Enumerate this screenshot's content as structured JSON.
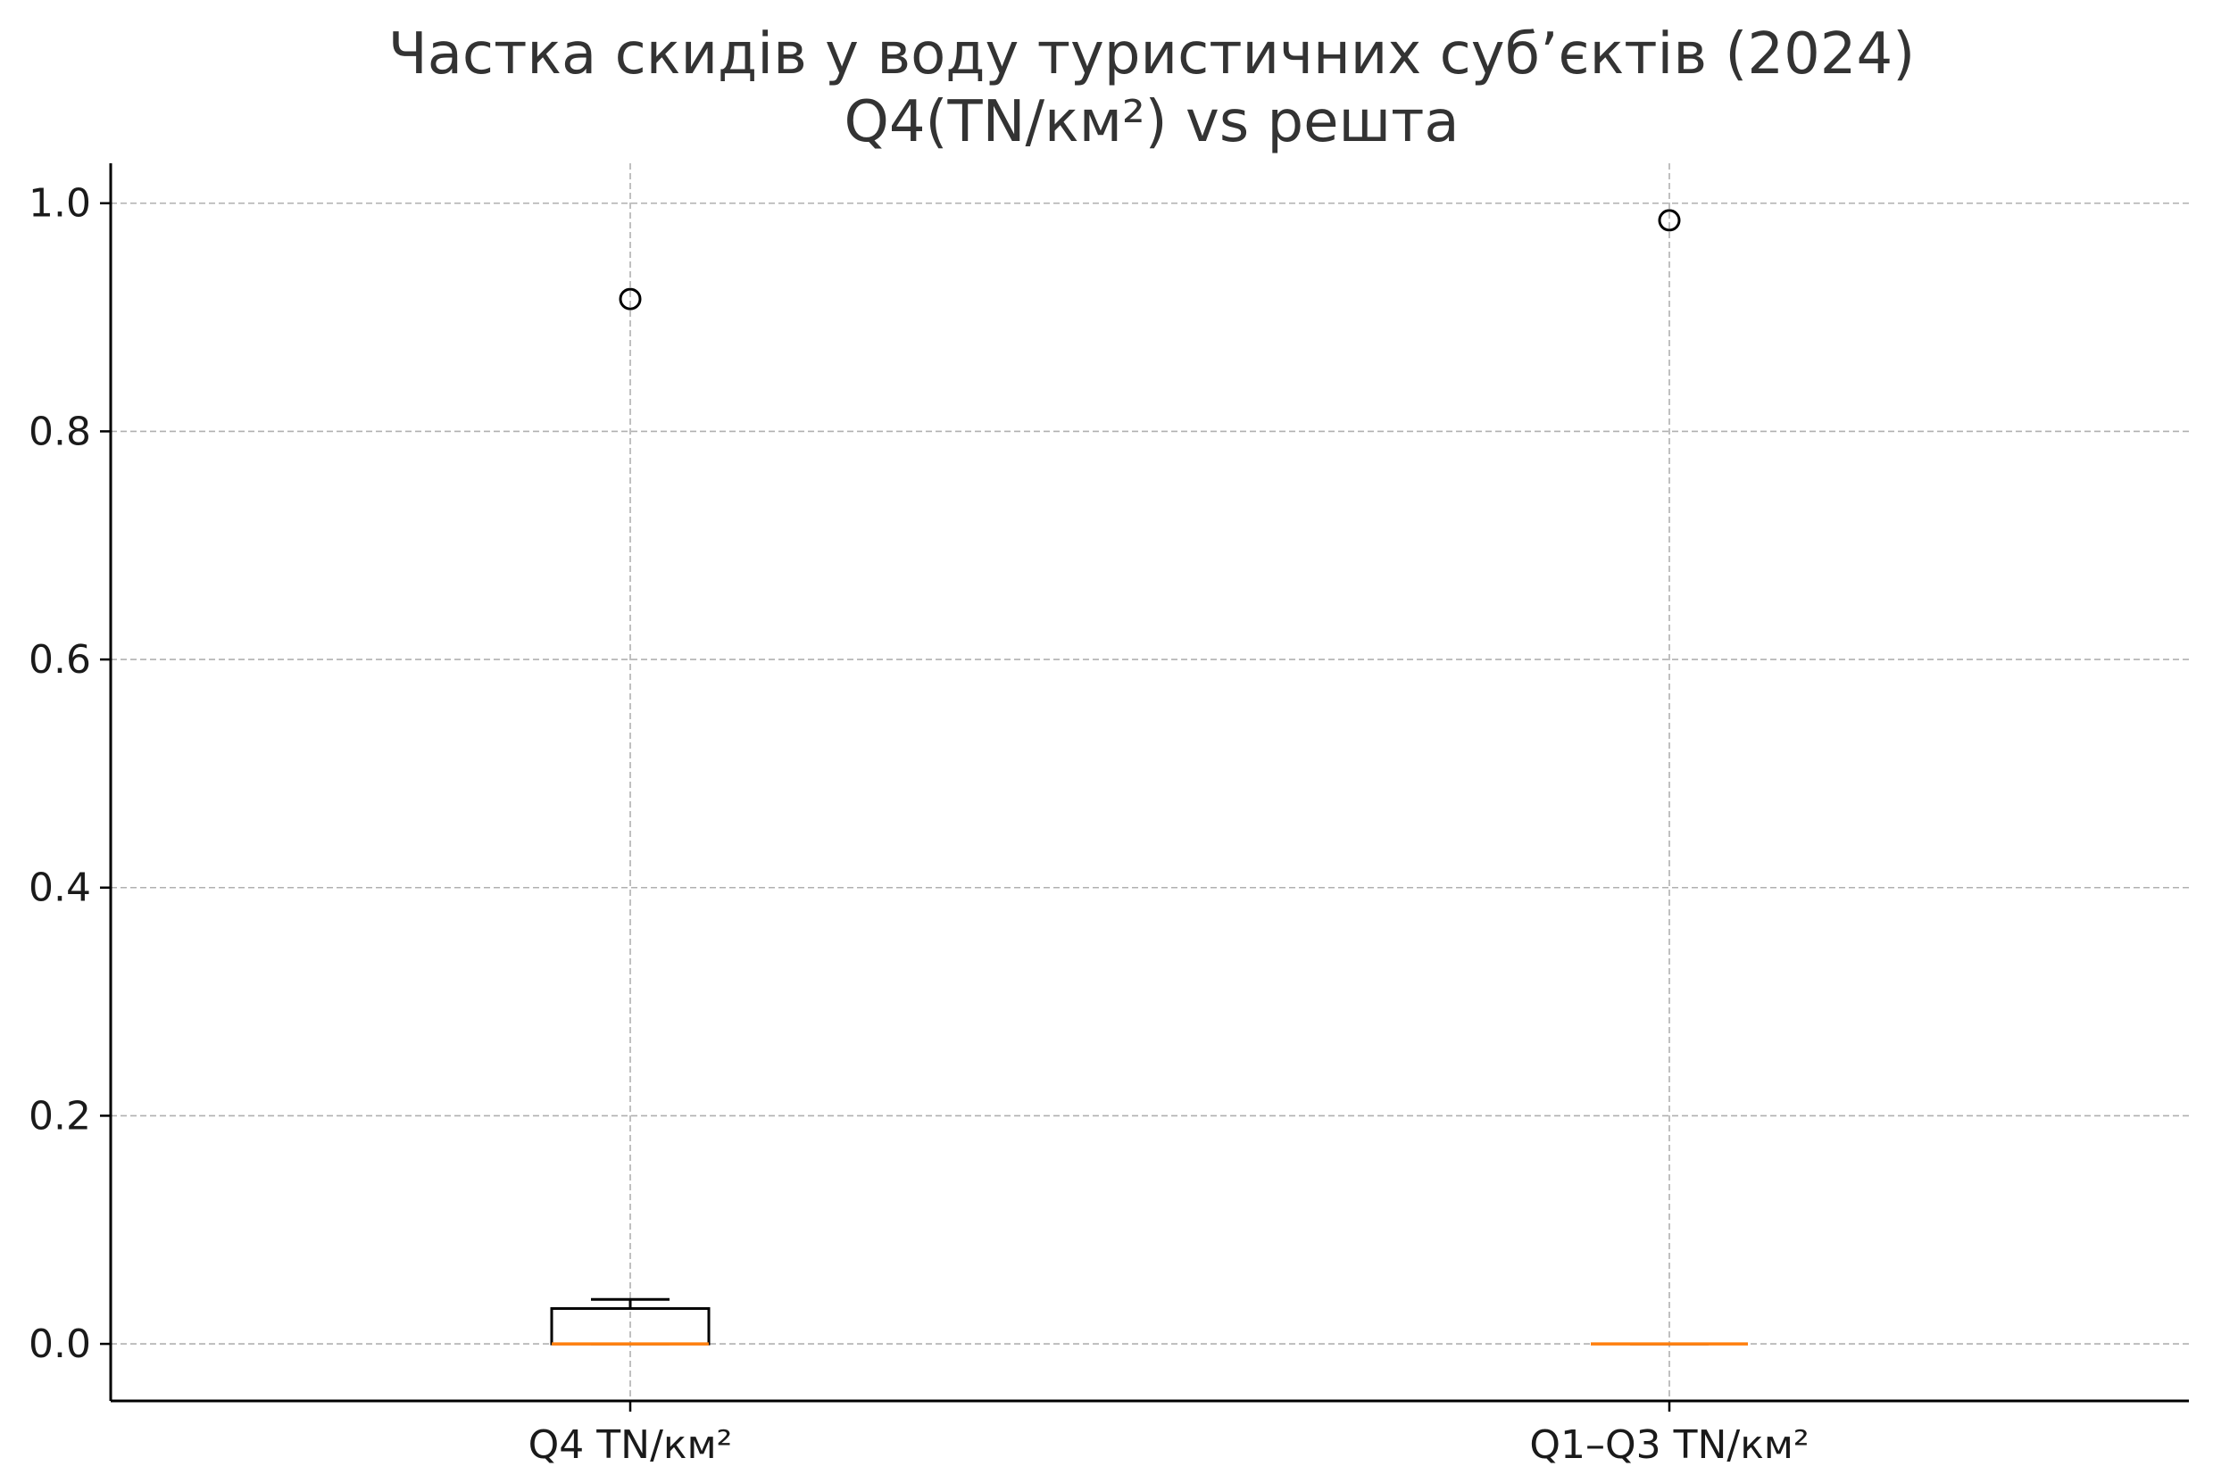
{
  "chart_data": {
    "type": "box",
    "title": "Частка скидів у воду туристичних суб’єктів (2024)",
    "subtitle": "Q4(TN/км²) vs решта",
    "xlabel": "",
    "ylabel": "",
    "ylim": [
      -0.05,
      1.035
    ],
    "yticks": [
      "0.0",
      "0.2",
      "0.4",
      "0.6",
      "0.8",
      "1.0"
    ],
    "ytick_values": [
      0.0,
      0.2,
      0.4,
      0.6,
      0.8,
      1.0
    ],
    "grid": true,
    "categories": [
      "Q4 TN/км²",
      "Q1–Q3 TN/км²"
    ],
    "boxes": [
      {
        "category": "Q4 TN/км²",
        "whisker_low": 0.0,
        "q1": 0.0,
        "median": 0.0,
        "q3": 0.031,
        "whisker_high": 0.039,
        "outliers": [
          0.916
        ]
      },
      {
        "category": "Q1–Q3 TN/км²",
        "whisker_low": 0.0,
        "q1": 0.0,
        "median": 0.0,
        "q3": 0.0,
        "whisker_high": 0.0,
        "outliers": [
          0.985
        ]
      }
    ],
    "colors": {
      "box": "#000000",
      "median": "#ff7f0e",
      "grid": "#b0b0b0",
      "axis": "#000000"
    }
  }
}
